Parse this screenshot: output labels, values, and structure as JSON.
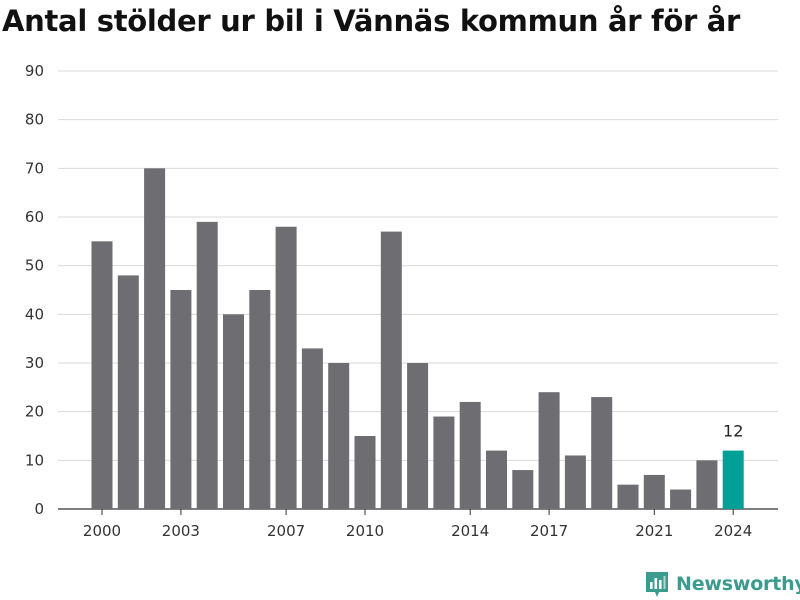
{
  "colors": {
    "bar": "#6e6d72",
    "highlight": "#00a096",
    "grid": "#d9d9d9",
    "axis": "#333333",
    "brand": "#3a9b8e"
  },
  "brand": {
    "name": "Newsworthy",
    "icon": "bar-chart-logo-icon"
  },
  "chart_data": {
    "type": "bar",
    "title": "Antal stölder ur bil i Vännäs kommun år för år",
    "xlabel": "",
    "ylabel": "",
    "categories": [
      "2000",
      "2001",
      "2002",
      "2003",
      "2004",
      "2005",
      "2006",
      "2007",
      "2008",
      "2009",
      "2010",
      "2011",
      "2012",
      "2013",
      "2014",
      "2015",
      "2016",
      "2017",
      "2018",
      "2019",
      "2020",
      "2021",
      "2022",
      "2023",
      "2024"
    ],
    "values": [
      55,
      48,
      70,
      45,
      59,
      40,
      45,
      58,
      33,
      30,
      15,
      57,
      30,
      19,
      22,
      12,
      8,
      24,
      11,
      23,
      5,
      7,
      4,
      10,
      12
    ],
    "x_tick_labels": [
      "2000",
      "2003",
      "2007",
      "2010",
      "2014",
      "2017",
      "2021",
      "2024"
    ],
    "y_ticks": [
      "0",
      "10",
      "20",
      "30",
      "40",
      "50",
      "60",
      "70",
      "80",
      "90"
    ],
    "ylim": [
      0,
      90
    ],
    "highlight": {
      "category": "2024",
      "label": "12"
    },
    "grid": true,
    "legend": "none"
  }
}
